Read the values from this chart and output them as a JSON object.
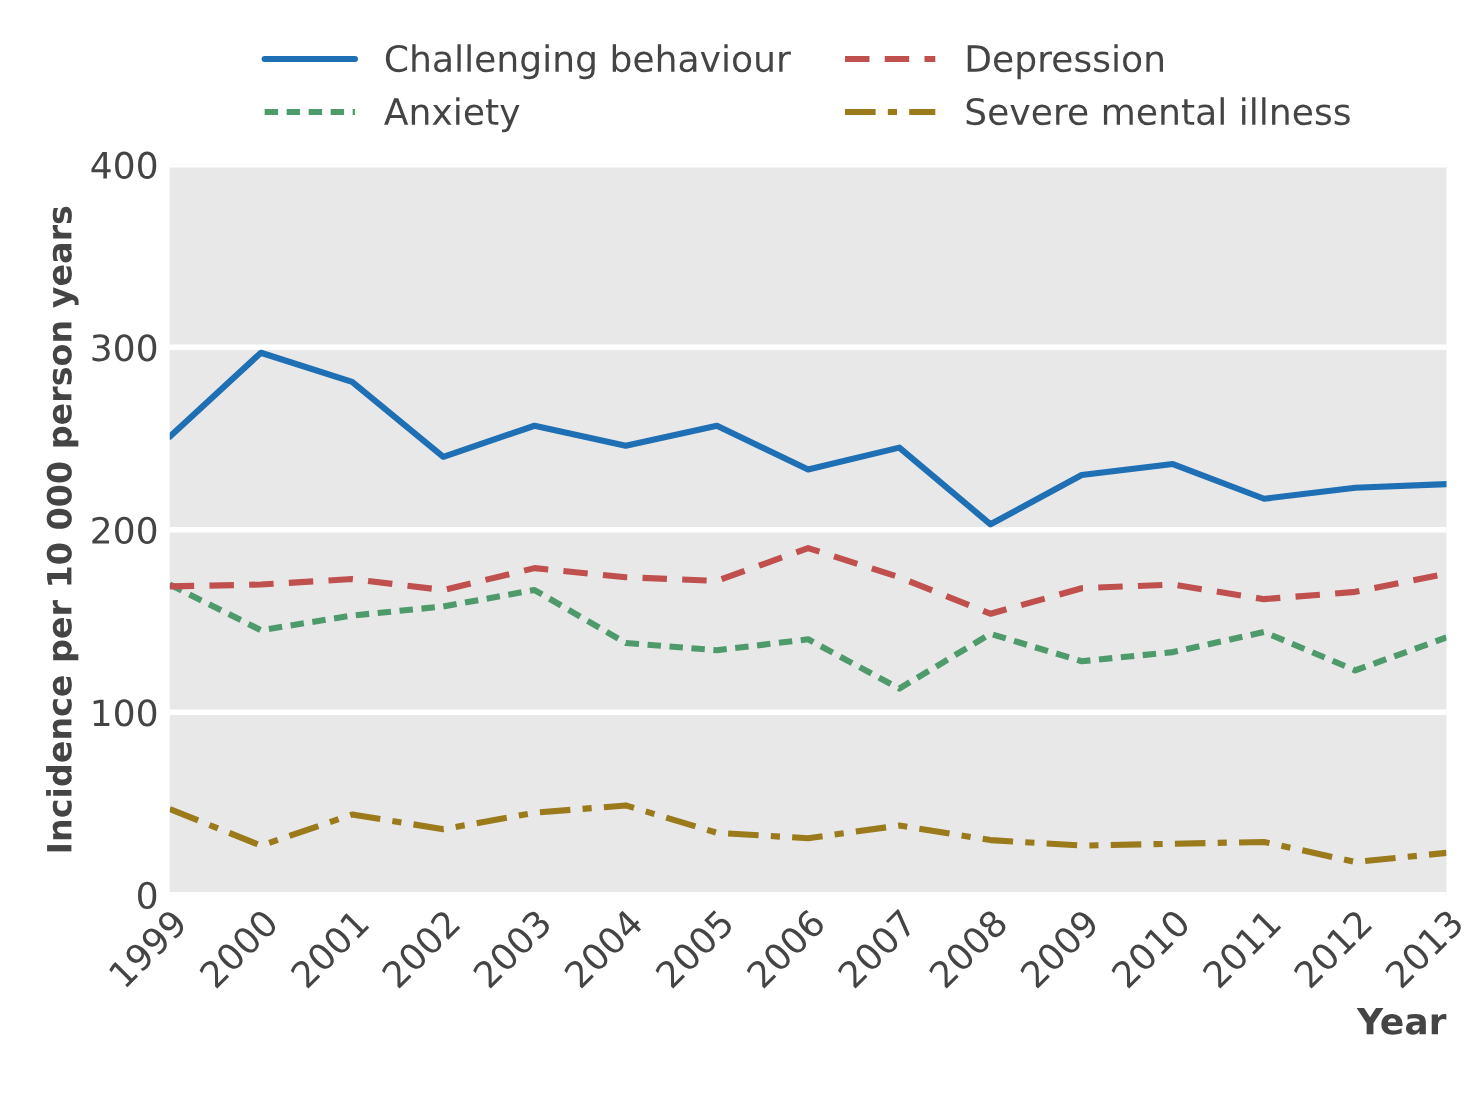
{
  "chart_data": {
    "type": "line",
    "xlabel": "Year",
    "ylabel": "Incidence per 10 000 person years",
    "categories": [
      "1999",
      "2000",
      "2001",
      "2002",
      "2003",
      "2004",
      "2005",
      "2006",
      "2007",
      "2008",
      "2009",
      "2010",
      "2011",
      "2012",
      "2013"
    ],
    "series": [
      {
        "name": "Challenging behaviour",
        "color": "#1f6fb5",
        "line_style": "solid",
        "values": [
          251,
          297,
          281,
          240,
          257,
          246,
          257,
          233,
          245,
          203,
          230,
          236,
          217,
          223,
          225
        ]
      },
      {
        "name": "Anxiety",
        "color": "#4e9a6a",
        "line_style": "dotted",
        "values": [
          170,
          145,
          153,
          158,
          167,
          138,
          134,
          140,
          113,
          143,
          128,
          133,
          144,
          123,
          141
        ]
      },
      {
        "name": "Depression",
        "color": "#c0504d",
        "line_style": "dashed",
        "values": [
          169,
          170,
          173,
          167,
          179,
          174,
          172,
          190,
          174,
          154,
          168,
          170,
          162,
          166,
          176
        ]
      },
      {
        "name": "Severe mental illness",
        "color": "#9a7a1a",
        "line_style": "dashdot",
        "values": [
          47,
          27,
          44,
          36,
          45,
          49,
          34,
          31,
          38,
          30,
          27,
          28,
          29,
          18,
          23
        ]
      }
    ],
    "ylim": [
      0,
      400
    ],
    "yticks": [
      0,
      100,
      200,
      300,
      400
    ],
    "grid": "y",
    "legend": "top",
    "marker": "none"
  }
}
